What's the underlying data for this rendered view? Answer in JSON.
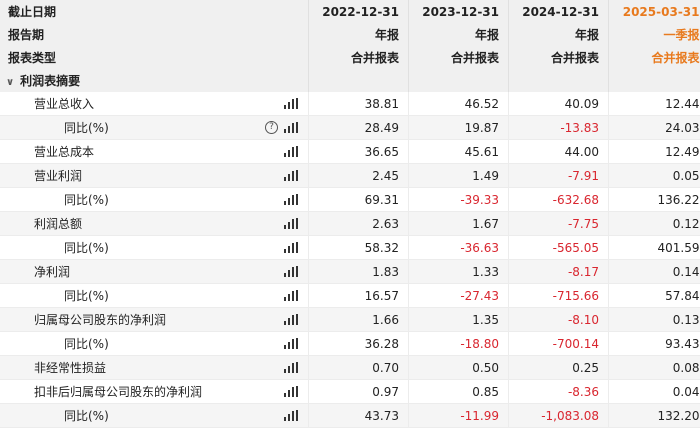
{
  "header": {
    "row1": {
      "label": "截止日期",
      "cols": [
        "2022-12-31",
        "2023-12-31",
        "2024-12-31",
        "2025-03-31"
      ]
    },
    "row2": {
      "label": "报告期",
      "cols": [
        "年报",
        "年报",
        "年报",
        "一季报"
      ]
    },
    "row3": {
      "label": "报表类型",
      "cols": [
        "合并报表",
        "合并报表",
        "合并报表",
        "合并报表"
      ]
    },
    "accent_color": "#e87a1e"
  },
  "section": {
    "title": "利润表摘要",
    "chevron": "chevron-down-icon"
  },
  "rows": [
    {
      "label": "营业总收入",
      "sub": false,
      "help": false,
      "values": [
        "38.81",
        "46.52",
        "40.09",
        "12.44"
      ],
      "neg": [
        false,
        false,
        false,
        false
      ]
    },
    {
      "label": "同比(%)",
      "sub": true,
      "help": true,
      "values": [
        "28.49",
        "19.87",
        "-13.83",
        "24.03"
      ],
      "neg": [
        false,
        false,
        true,
        false
      ]
    },
    {
      "label": "营业总成本",
      "sub": false,
      "help": false,
      "values": [
        "36.65",
        "45.61",
        "44.00",
        "12.49"
      ],
      "neg": [
        false,
        false,
        false,
        false
      ]
    },
    {
      "label": "营业利润",
      "sub": false,
      "help": false,
      "values": [
        "2.45",
        "1.49",
        "-7.91",
        "0.05"
      ],
      "neg": [
        false,
        false,
        true,
        false
      ]
    },
    {
      "label": "同比(%)",
      "sub": true,
      "help": false,
      "values": [
        "69.31",
        "-39.33",
        "-632.68",
        "136.22"
      ],
      "neg": [
        false,
        true,
        true,
        false
      ]
    },
    {
      "label": "利润总额",
      "sub": false,
      "help": false,
      "values": [
        "2.63",
        "1.67",
        "-7.75",
        "0.12"
      ],
      "neg": [
        false,
        false,
        true,
        false
      ]
    },
    {
      "label": "同比(%)",
      "sub": true,
      "help": false,
      "values": [
        "58.32",
        "-36.63",
        "-565.05",
        "401.59"
      ],
      "neg": [
        false,
        true,
        true,
        false
      ]
    },
    {
      "label": "净利润",
      "sub": false,
      "help": false,
      "values": [
        "1.83",
        "1.33",
        "-8.17",
        "0.14"
      ],
      "neg": [
        false,
        false,
        true,
        false
      ]
    },
    {
      "label": "同比(%)",
      "sub": true,
      "help": false,
      "values": [
        "16.57",
        "-27.43",
        "-715.66",
        "57.84"
      ],
      "neg": [
        false,
        true,
        true,
        false
      ]
    },
    {
      "label": "归属母公司股东的净利润",
      "sub": false,
      "help": false,
      "values": [
        "1.66",
        "1.35",
        "-8.10",
        "0.13"
      ],
      "neg": [
        false,
        false,
        true,
        false
      ]
    },
    {
      "label": "同比(%)",
      "sub": true,
      "help": false,
      "values": [
        "36.28",
        "-18.80",
        "-700.14",
        "93.43"
      ],
      "neg": [
        false,
        true,
        true,
        false
      ]
    },
    {
      "label": "非经常性损益",
      "sub": false,
      "help": false,
      "values": [
        "0.70",
        "0.50",
        "0.25",
        "0.08"
      ],
      "neg": [
        false,
        false,
        false,
        false
      ]
    },
    {
      "label": "扣非后归属母公司股东的净利润",
      "sub": false,
      "help": false,
      "values": [
        "0.97",
        "0.85",
        "-8.36",
        "0.04"
      ],
      "neg": [
        false,
        false,
        true,
        false
      ]
    },
    {
      "label": "同比(%)",
      "sub": true,
      "help": false,
      "values": [
        "43.73",
        "-11.99",
        "-1,083.08",
        "132.20"
      ],
      "neg": [
        false,
        true,
        true,
        false
      ]
    }
  ],
  "colors": {
    "negative": "#d9262f",
    "header_bg": "#f0f0f0",
    "row_shade": "#f5f5f5"
  },
  "icons": {
    "chart": "bar-chart-icon",
    "help": "help-circle-icon"
  }
}
